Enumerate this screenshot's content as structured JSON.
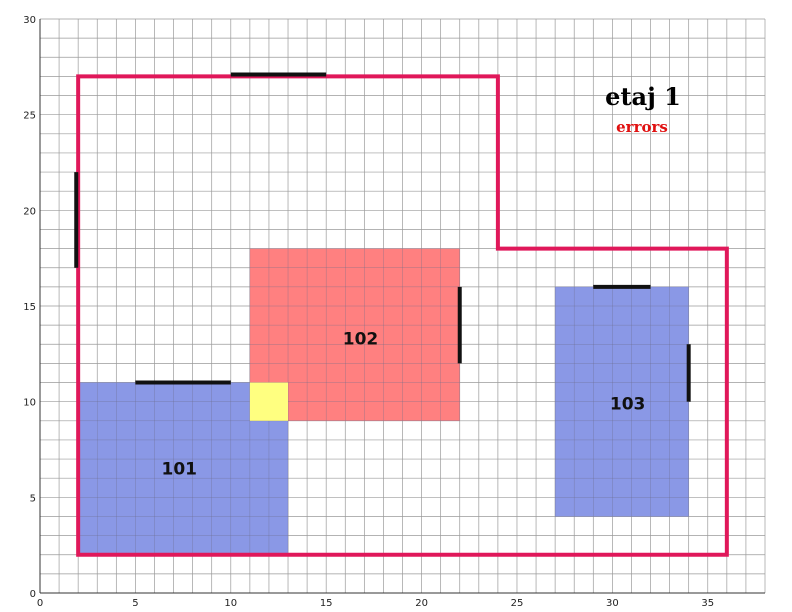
{
  "chart_data": {
    "type": "floorplan",
    "title": "etaj 1",
    "subtitle": "errors",
    "xlim": [
      0,
      38
    ],
    "ylim": [
      0,
      30
    ],
    "x_ticks": [
      0,
      5,
      10,
      15,
      20,
      25,
      30,
      35
    ],
    "y_ticks": [
      0,
      5,
      10,
      15,
      20,
      25,
      30
    ],
    "grid": true,
    "outline": {
      "color": "#e0185a",
      "points": [
        [
          2,
          2
        ],
        [
          2,
          27
        ],
        [
          24,
          27
        ],
        [
          24,
          18
        ],
        [
          36,
          18
        ],
        [
          36,
          2
        ]
      ]
    },
    "rooms": [
      {
        "label": "101",
        "x0": 2,
        "x1": 13,
        "y0": 2,
        "y1": 11,
        "color": "#8a98e6",
        "label_at": [
          7.3,
          6.5
        ]
      },
      {
        "label": "102",
        "x0": 11,
        "x1": 22,
        "y0": 9,
        "y1": 18,
        "color": "#ff8080",
        "label_at": [
          16.8,
          13.3
        ]
      },
      {
        "label": "103",
        "x0": 27,
        "x1": 34,
        "y0": 4,
        "y1": 16,
        "color": "#8a98e6",
        "label_at": [
          30.8,
          9.9
        ]
      }
    ],
    "overlaps": [
      {
        "x0": 11,
        "x1": 13,
        "y0": 9,
        "y1": 11,
        "color": "#ffff80"
      }
    ],
    "doors": [
      {
        "x1": 10,
        "y1": 27.1,
        "x2": 15,
        "y2": 27.1
      },
      {
        "x1": 1.9,
        "y1": 17,
        "x2": 1.9,
        "y2": 22
      },
      {
        "x1": 5,
        "y1": 11,
        "x2": 10,
        "y2": 11
      },
      {
        "x1": 22,
        "y1": 12,
        "x2": 22,
        "y2": 16
      },
      {
        "x1": 29,
        "y1": 16,
        "x2": 32,
        "y2": 16
      },
      {
        "x1": 34,
        "y1": 10,
        "x2": 34,
        "y2": 13
      }
    ]
  }
}
